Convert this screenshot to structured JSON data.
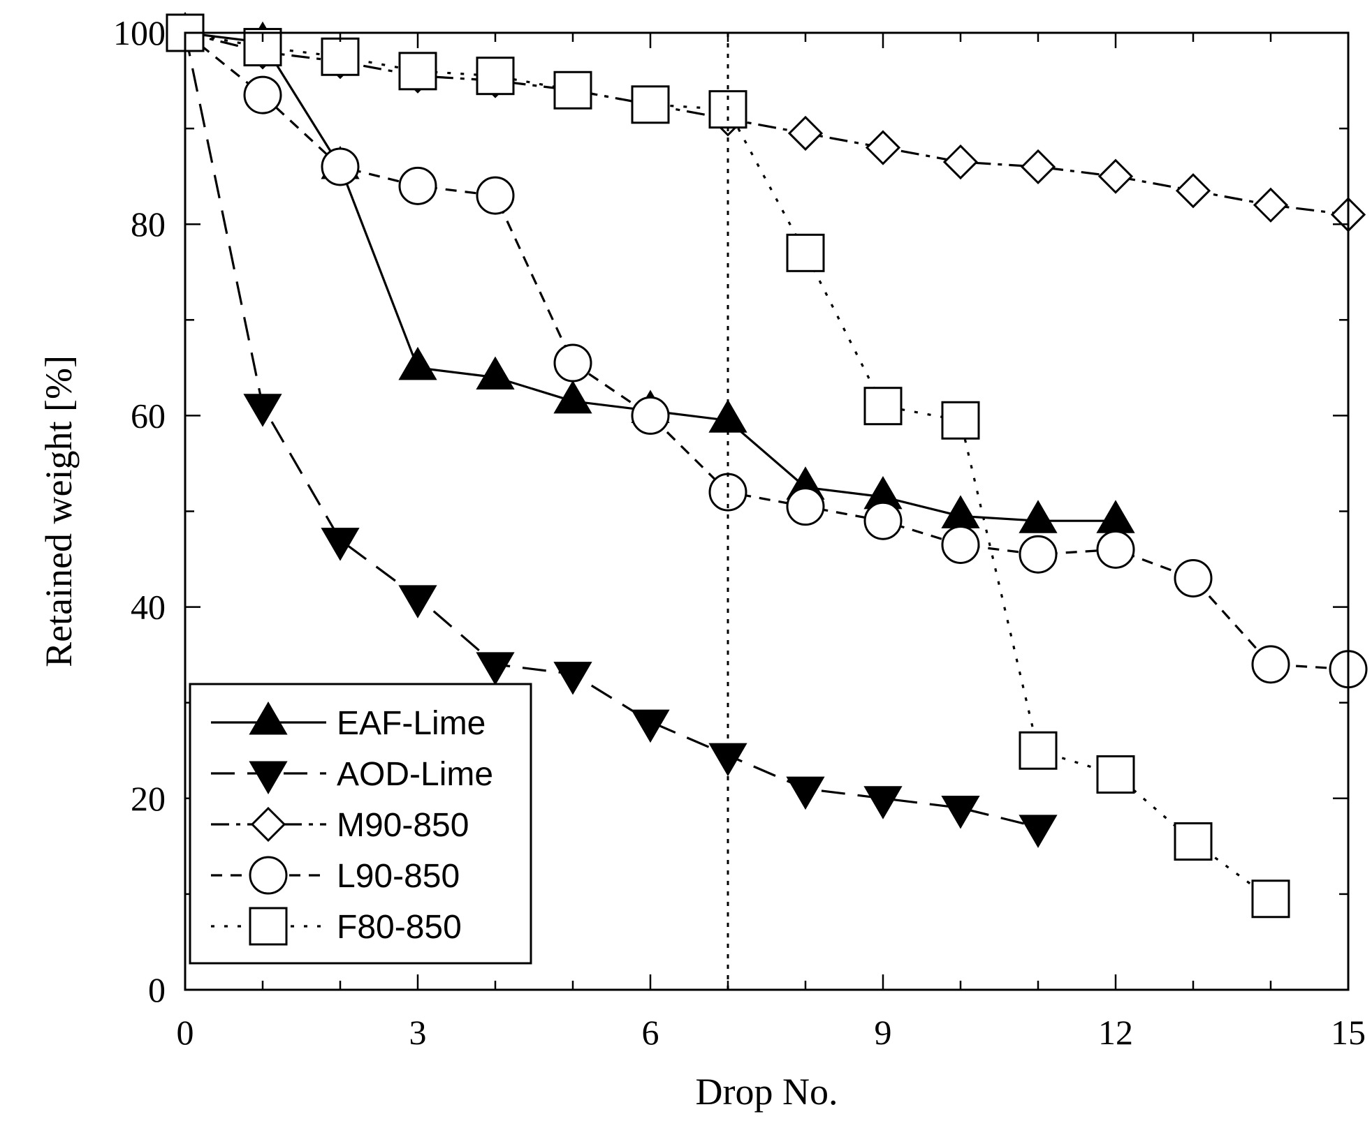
{
  "chart_data": {
    "type": "line",
    "xlabel": "Drop No.",
    "ylabel": "Retained weight [%]",
    "xlim": [
      0,
      15
    ],
    "ylim": [
      0,
      100
    ],
    "x_ticks": [
      0,
      3,
      6,
      9,
      12,
      15
    ],
    "y_ticks": [
      0,
      20,
      40,
      60,
      80,
      100
    ],
    "x_minor_step": 1,
    "y_minor_step": 10,
    "grid": false,
    "legend_position": "bottom-left",
    "reference_line": {
      "x": 7,
      "style": "dotted"
    },
    "series": [
      {
        "name": "EAF-Lime",
        "marker": "triangle-up",
        "filled": true,
        "line": "solid",
        "x": [
          0,
          1,
          2,
          3,
          4,
          5,
          6,
          7,
          8,
          9,
          10,
          11,
          12
        ],
        "y": [
          100,
          99,
          86,
          65,
          64,
          61.5,
          60.5,
          59.5,
          52.5,
          51.5,
          49.5,
          49,
          49
        ]
      },
      {
        "name": "AOD-Lime",
        "marker": "triangle-down",
        "filled": true,
        "line": "long-dash",
        "x": [
          0,
          1,
          2,
          3,
          4,
          5,
          6,
          7,
          8,
          9,
          10,
          11
        ],
        "y": [
          100,
          61,
          47,
          41,
          34,
          33,
          28,
          24.5,
          21,
          20,
          19,
          17
        ]
      },
      {
        "name": "M90-850",
        "marker": "diamond",
        "filled": false,
        "line": "dash-dot",
        "x": [
          0,
          1,
          2,
          3,
          4,
          5,
          6,
          7,
          8,
          9,
          10,
          11,
          12,
          13,
          14,
          15
        ],
        "y": [
          100,
          98,
          97,
          95.5,
          95,
          94,
          92.5,
          91,
          89.5,
          88,
          86.5,
          86,
          85,
          83.5,
          82,
          81
        ]
      },
      {
        "name": "L90-850",
        "marker": "circle",
        "filled": false,
        "line": "dashed",
        "x": [
          0,
          1,
          2,
          3,
          4,
          5,
          6,
          7,
          8,
          9,
          10,
          11,
          12,
          13,
          14,
          15
        ],
        "y": [
          100,
          93.5,
          86,
          84,
          83,
          65.5,
          60,
          52,
          50.5,
          49,
          46.5,
          45.5,
          46,
          43,
          34,
          33.5
        ]
      },
      {
        "name": "F80-850",
        "marker": "square",
        "filled": false,
        "line": "dotted",
        "x": [
          0,
          1,
          2,
          3,
          4,
          5,
          6,
          7,
          8,
          9,
          10,
          11,
          12,
          13,
          14
        ],
        "y": [
          100,
          98.5,
          97.5,
          96,
          95.5,
          94,
          92.5,
          92,
          77,
          61,
          59.5,
          25,
          22.5,
          15.5,
          9.5
        ]
      }
    ]
  }
}
